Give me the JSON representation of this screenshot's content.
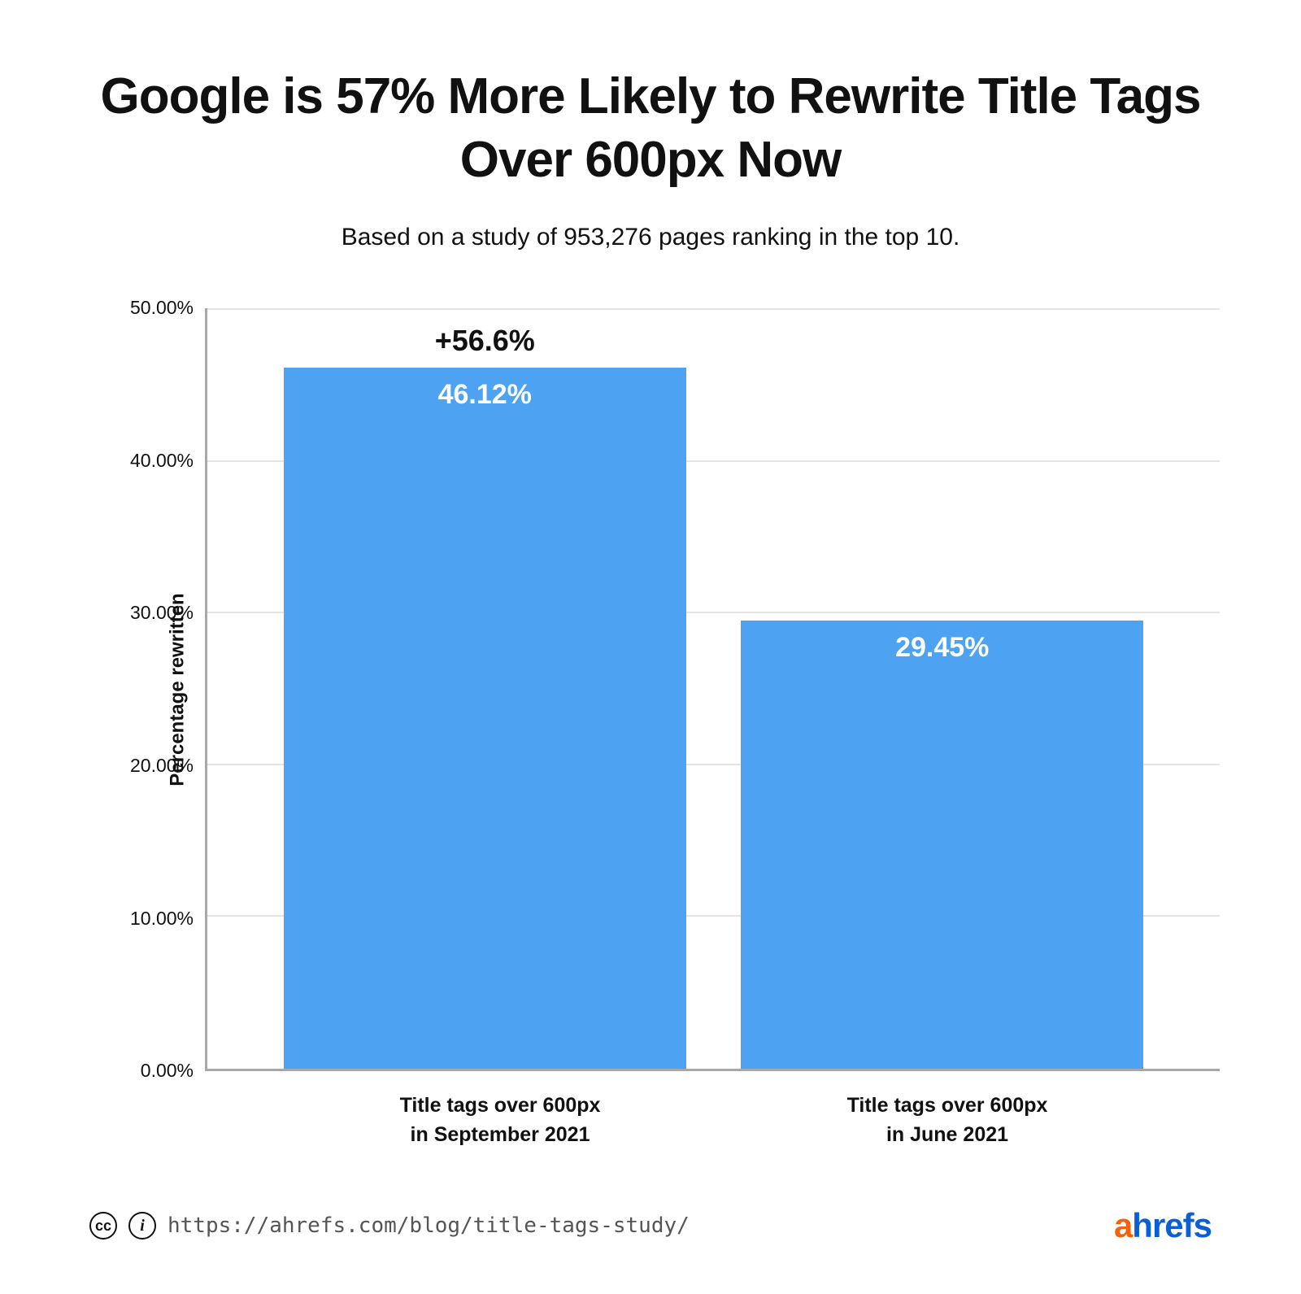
{
  "title": "Google is 57% More Likely to Rewrite Title Tags Over 600px Now",
  "subtitle": "Based on a study of 953,276 pages ranking in the top 10.",
  "chart": {
    "type": "bar",
    "ylabel": "Percentage rewritten",
    "ymax": 50,
    "ymin": 0,
    "yticks": [
      "50.00%",
      "40.00%",
      "30.00%",
      "20.00%",
      "10.00%",
      "0.00%"
    ],
    "grid_color": "#e4e4e4",
    "axis_color": "#a8a8a8",
    "background_color": "#ffffff",
    "bars": [
      {
        "label": "Title tags over 600px\nin September 2021",
        "value": 46.12,
        "value_label": "46.12%",
        "delta_label": "+56.6%",
        "color": "#4da3f2"
      },
      {
        "label": "Title tags over 600px\nin June 2021",
        "value": 29.45,
        "value_label": "29.45%",
        "delta_label": "",
        "color": "#4da3f2"
      }
    ],
    "title_fontsize": 62,
    "subtitle_fontsize": 30,
    "ylabel_fontsize": 24,
    "ytick_fontsize": 23,
    "xlabel_fontsize": 25,
    "value_fontsize": 34,
    "delta_fontsize": 36
  },
  "footer": {
    "source_url": "https://ahrefs.com/blog/title-tags-study/",
    "source_fontsize": 26,
    "brand_a": "a",
    "brand_rest": "hrefs",
    "brand_a_color": "#f2630b",
    "brand_rest_color": "#0a5ed6",
    "brand_fontsize": 42
  }
}
